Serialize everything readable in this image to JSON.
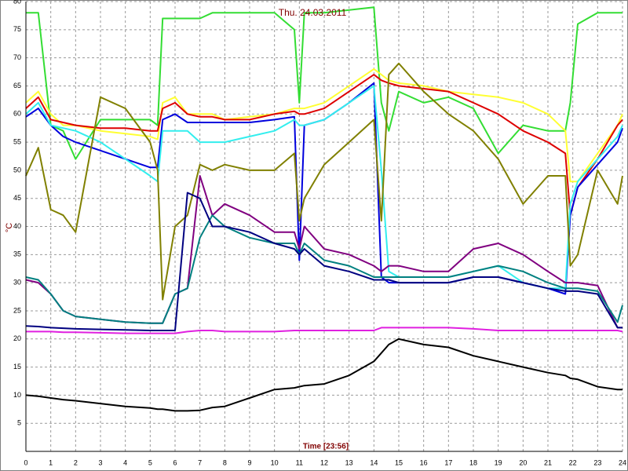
{
  "chart_data": {
    "type": "line",
    "title": "Thu. 24.03.2011",
    "xlabel": "Time [23:56]",
    "ylabel": "°C",
    "x": [
      0,
      0.5,
      1,
      1.5,
      2,
      3,
      4,
      5,
      5.3,
      5.5,
      6,
      6.5,
      7,
      7.5,
      8,
      9,
      10,
      10.8,
      11,
      11.2,
      12,
      13,
      14,
      14.3,
      14.6,
      15,
      16,
      17,
      18,
      19,
      20,
      21,
      21.7,
      21.9,
      22.2,
      23,
      23.8,
      24
    ],
    "xlim": [
      0,
      24
    ],
    "xticks": [
      0,
      1,
      2,
      3,
      4,
      5,
      6,
      7,
      8,
      9,
      10,
      11,
      12,
      13,
      14,
      15,
      16,
      17,
      18,
      19,
      20,
      21,
      22,
      23,
      24
    ],
    "ylim": [
      0,
      80
    ],
    "yticks": [
      5,
      10,
      15,
      20,
      25,
      30,
      35,
      40,
      45,
      50,
      55,
      60,
      65,
      70,
      75,
      80
    ],
    "grid": true,
    "series": [
      {
        "color": "#33dd33",
        "values": [
          78,
          78,
          58,
          57,
          52,
          59,
          59,
          59,
          58,
          77,
          77,
          77,
          77,
          78,
          78,
          78,
          78,
          75,
          62,
          78,
          78,
          78.5,
          79,
          62,
          57,
          64,
          62,
          63,
          61,
          53,
          58,
          57,
          57,
          62,
          76,
          78,
          78,
          78
        ]
      },
      {
        "color": "#ffff33",
        "values": [
          62,
          64,
          60,
          58,
          58,
          57,
          56.5,
          56,
          55.5,
          62,
          63,
          60,
          60,
          60,
          59,
          59.5,
          60,
          61,
          61,
          61,
          62,
          65,
          68,
          67,
          66,
          65.5,
          65,
          64,
          63.5,
          63,
          62,
          60,
          57,
          48,
          48,
          53,
          58,
          60
        ]
      },
      {
        "color": "#dd0000",
        "values": [
          61,
          63,
          59,
          58.5,
          58,
          57.5,
          57.5,
          57,
          57,
          61,
          62,
          60,
          59.5,
          59.5,
          59,
          59,
          60,
          60.5,
          60,
          60,
          61,
          64,
          67,
          66,
          65.5,
          65,
          64.5,
          64,
          62,
          60,
          57,
          55,
          53,
          42,
          47,
          52,
          58,
          59
        ]
      },
      {
        "color": "#0000dd",
        "values": [
          59.5,
          61,
          58,
          56,
          55,
          53.5,
          52,
          50.5,
          50.5,
          59,
          60,
          58.5,
          58.5,
          58.5,
          58.5,
          58.5,
          59,
          59.5,
          34,
          58,
          59,
          62,
          65.5,
          31,
          30,
          30,
          30,
          30,
          31,
          31,
          30,
          29,
          28,
          42,
          47,
          51,
          55,
          57.5
        ]
      },
      {
        "color": "#33eeee",
        "values": [
          60,
          62,
          58,
          57.5,
          57,
          55,
          52,
          49,
          48,
          57,
          57,
          57,
          55,
          55,
          55,
          56,
          57,
          59,
          58,
          58,
          59,
          62,
          65,
          50,
          32,
          31,
          31,
          31,
          32,
          33,
          30,
          29,
          29,
          44,
          48,
          52,
          56,
          58
        ]
      },
      {
        "color": "#808000",
        "values": [
          49,
          54,
          43,
          42,
          39,
          63,
          61,
          55,
          50,
          27,
          40,
          42,
          51,
          50,
          51,
          50,
          50,
          53,
          41,
          45,
          51,
          55,
          59,
          41,
          67,
          69,
          64,
          60,
          57,
          52,
          44,
          49,
          49,
          33,
          35,
          50,
          44,
          49
        ]
      },
      {
        "color": "#800080",
        "values": [
          30.5,
          30,
          28,
          25,
          24,
          23.5,
          23,
          22.8,
          22.8,
          22.8,
          28,
          29,
          49,
          42,
          44,
          42,
          39,
          39,
          36,
          40,
          36,
          35,
          33,
          32,
          33,
          33,
          32,
          32,
          36,
          37,
          35,
          32,
          30,
          30,
          30,
          29.5,
          22,
          22
        ]
      },
      {
        "color": "#008080",
        "values": [
          31,
          30.5,
          28,
          25,
          24,
          23.5,
          23,
          22.8,
          22.8,
          22.8,
          28,
          29,
          38,
          42,
          40,
          38,
          37,
          37,
          35,
          37,
          34,
          33,
          31,
          31,
          31,
          31,
          31,
          31,
          32,
          33,
          32,
          30,
          29,
          29,
          29,
          28.5,
          23,
          26
        ]
      },
      {
        "color": "#000080",
        "values": [
          22.3,
          22.2,
          22,
          21.9,
          21.8,
          21.7,
          21.6,
          21.5,
          21.5,
          21.5,
          21.5,
          46,
          45,
          40,
          40,
          39,
          37,
          36,
          35,
          36,
          33,
          32,
          30.5,
          30.5,
          30.5,
          30,
          30,
          30,
          31,
          31,
          30,
          29,
          28.5,
          28.5,
          28.5,
          28,
          22,
          22
        ]
      },
      {
        "color": "#e020e0",
        "values": [
          21.3,
          21.3,
          21.3,
          21.2,
          21.2,
          21.1,
          21,
          21,
          21,
          21,
          21,
          21.3,
          21.5,
          21.5,
          21.3,
          21.3,
          21.3,
          21.5,
          21.5,
          21.5,
          21.5,
          21.5,
          21.5,
          22,
          22,
          22,
          22,
          22,
          21.8,
          21.5,
          21.5,
          21.5,
          21.5,
          21.5,
          21.5,
          21.5,
          21.5,
          21.3
        ]
      },
      {
        "color": "#000000",
        "values": [
          10,
          9.8,
          9.5,
          9.2,
          9,
          8.5,
          8,
          7.7,
          7.5,
          7.5,
          7.2,
          7.2,
          7.3,
          7.8,
          8,
          9.5,
          11,
          11.3,
          11.5,
          11.7,
          12,
          13.5,
          16,
          17.5,
          19,
          20,
          19,
          18.5,
          17,
          16,
          15,
          14,
          13.5,
          13,
          12.8,
          11.5,
          11,
          11
        ]
      }
    ]
  }
}
